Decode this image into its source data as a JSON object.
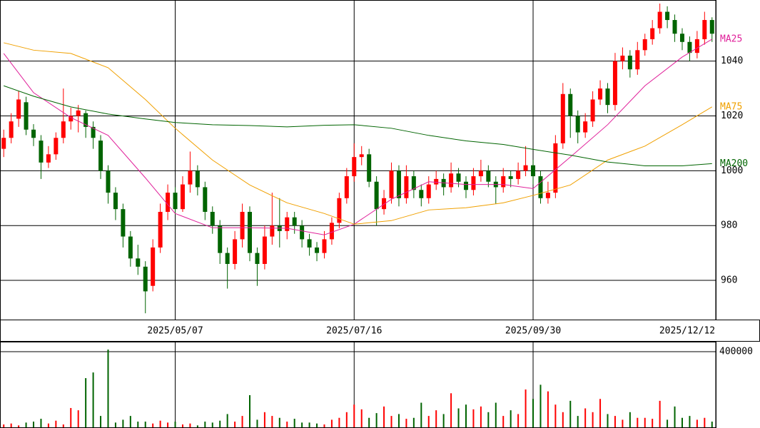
{
  "chart_data": [
    {
      "type": "candlestick",
      "x": [
        0,
        1,
        2,
        3,
        4,
        5,
        6,
        7,
        8,
        9,
        10,
        11,
        12,
        13,
        14,
        15,
        16,
        17,
        18,
        19,
        20,
        21,
        22,
        23,
        24,
        25,
        26,
        27,
        28,
        29,
        30,
        31,
        32,
        33,
        34,
        35,
        36,
        37,
        38,
        39,
        40,
        41,
        42,
        43,
        44,
        45,
        46,
        47,
        48,
        49,
        50,
        51,
        52,
        53,
        54,
        55,
        56,
        57,
        58,
        59,
        60,
        61,
        62,
        63,
        64,
        65,
        66,
        67,
        68,
        69,
        70,
        71,
        72,
        73,
        74,
        75,
        76,
        77,
        78,
        79,
        80,
        81,
        82,
        83,
        84,
        85,
        86,
        87,
        88,
        89,
        90,
        91,
        92,
        93,
        94,
        95
      ],
      "ohlc": [
        [
          1008,
          1015,
          1005,
          1012
        ],
        [
          1012,
          1021,
          1010,
          1018
        ],
        [
          1019,
          1029,
          1016,
          1026
        ],
        [
          1025,
          1027,
          1013,
          1015
        ],
        [
          1015,
          1017,
          1009,
          1012
        ],
        [
          1011,
          1013,
          997,
          1003
        ],
        [
          1003,
          1009,
          1001,
          1006
        ],
        [
          1006,
          1014,
          1004,
          1012
        ],
        [
          1012,
          1030,
          1010,
          1018
        ],
        [
          1018,
          1023,
          1015,
          1020
        ],
        [
          1020,
          1024,
          1014,
          1022
        ],
        [
          1021,
          1022,
          1012,
          1016
        ],
        [
          1016,
          1018,
          1008,
          1012
        ],
        [
          1011,
          1013,
          997,
          1000
        ],
        [
          1000,
          1002,
          988,
          992
        ],
        [
          992,
          994,
          982,
          986
        ],
        [
          986,
          988,
          972,
          976
        ],
        [
          976,
          978,
          965,
          968
        ],
        [
          968,
          973,
          962,
          965
        ],
        [
          965,
          967,
          948,
          956
        ],
        [
          958,
          975,
          956,
          972
        ],
        [
          972,
          988,
          970,
          985
        ],
        [
          985,
          995,
          982,
          992
        ],
        [
          992,
          994,
          984,
          986
        ],
        [
          986,
          998,
          985,
          995
        ],
        [
          995,
          1007,
          992,
          1000
        ],
        [
          1000,
          1002,
          991,
          994
        ],
        [
          994,
          996,
          982,
          985
        ],
        [
          985,
          987,
          977,
          980
        ],
        [
          980,
          982,
          966,
          970
        ],
        [
          970,
          972,
          957,
          966
        ],
        [
          966,
          978,
          964,
          975
        ],
        [
          975,
          988,
          972,
          985
        ],
        [
          985,
          987,
          967,
          970
        ],
        [
          970,
          972,
          958,
          966
        ],
        [
          966,
          980,
          964,
          976
        ],
        [
          976,
          992,
          973,
          980
        ],
        [
          980,
          990,
          972,
          978
        ],
        [
          978,
          985,
          975,
          983
        ],
        [
          983,
          985,
          977,
          980
        ],
        [
          980,
          982,
          972,
          975
        ],
        [
          975,
          977,
          969,
          972
        ],
        [
          972,
          974,
          967,
          970
        ],
        [
          970,
          978,
          968,
          975
        ],
        [
          975,
          983,
          973,
          981
        ],
        [
          981,
          992,
          979,
          990
        ],
        [
          990,
          1001,
          988,
          998
        ],
        [
          998,
          1010,
          996,
          1005
        ],
        [
          1005,
          1009,
          1002,
          1006
        ],
        [
          1006,
          1008,
          994,
          996
        ],
        [
          996,
          998,
          980,
          986
        ],
        [
          986,
          993,
          984,
          990
        ],
        [
          990,
          1003,
          988,
          1000
        ],
        [
          1000,
          1002,
          987,
          990
        ],
        [
          990,
          1002,
          988,
          998
        ],
        [
          998,
          1000,
          990,
          993
        ],
        [
          993,
          995,
          987,
          990
        ],
        [
          990,
          998,
          988,
          995
        ],
        [
          995,
          1000,
          993,
          997
        ],
        [
          997,
          999,
          991,
          994
        ],
        [
          994,
          1003,
          992,
          999
        ],
        [
          999,
          1001,
          994,
          996
        ],
        [
          996,
          998,
          990,
          993
        ],
        [
          993,
          1001,
          991,
          998
        ],
        [
          998,
          1004,
          996,
          1000
        ],
        [
          1000,
          1002,
          994,
          996
        ],
        [
          996,
          998,
          988,
          994
        ],
        [
          994,
          1001,
          992,
          998
        ],
        [
          998,
          1000,
          994,
          997
        ],
        [
          997,
          1003,
          995,
          1000
        ],
        [
          1000,
          1009,
          998,
          1002
        ],
        [
          1002,
          1004,
          995,
          998
        ],
        [
          998,
          1000,
          988,
          990
        ],
        [
          990,
          996,
          988,
          992
        ],
        [
          992,
          1013,
          990,
          1010
        ],
        [
          1010,
          1032,
          1008,
          1028
        ],
        [
          1028,
          1030,
          1012,
          1020
        ],
        [
          1020,
          1022,
          1010,
          1014
        ],
        [
          1014,
          1021,
          1012,
          1018
        ],
        [
          1018,
          1029,
          1016,
          1026
        ],
        [
          1026,
          1033,
          1024,
          1030
        ],
        [
          1030,
          1032,
          1021,
          1024
        ],
        [
          1024,
          1043,
          1022,
          1040
        ],
        [
          1040,
          1045,
          1037,
          1042
        ],
        [
          1042,
          1044,
          1034,
          1037
        ],
        [
          1037,
          1047,
          1035,
          1044
        ],
        [
          1044,
          1050,
          1042,
          1048
        ],
        [
          1048,
          1055,
          1046,
          1052
        ],
        [
          1052,
          1061,
          1050,
          1058
        ],
        [
          1058,
          1060,
          1052,
          1055
        ],
        [
          1055,
          1057,
          1047,
          1050
        ],
        [
          1050,
          1052,
          1044,
          1047
        ],
        [
          1047,
          1049,
          1040,
          1043
        ],
        [
          1043,
          1051,
          1041,
          1048
        ],
        [
          1048,
          1058,
          1046,
          1055
        ],
        [
          1055,
          1056,
          1047,
          1050
        ]
      ],
      "up_color": "#ff0000",
      "down_color": "#006400",
      "series": [
        {
          "name": "MA25",
          "color": "#e0209a",
          "x": [
            0,
            4,
            9,
            14,
            19,
            23,
            28,
            33,
            38,
            43,
            47,
            52,
            57,
            62,
            67,
            71,
            76,
            81,
            86,
            91,
            95
          ],
          "values": [
            1042.8,
            1028.5,
            1019.4,
            1012.9,
            997.4,
            984.4,
            979.2,
            979.2,
            979,
            976.6,
            980.5,
            989.6,
            996,
            995,
            995,
            993.5,
            1005,
            1016.8,
            1031,
            1041.5,
            1048
          ]
        },
        {
          "name": "MA75",
          "color": "#f0a000",
          "x": [
            0,
            4,
            9,
            14,
            19,
            23,
            28,
            33,
            38,
            43,
            47,
            52,
            57,
            62,
            67,
            71,
            76,
            81,
            86,
            91,
            95
          ],
          "values": [
            1046.7,
            1044,
            1042.8,
            1037.6,
            1026,
            1015.5,
            1003.9,
            994.8,
            988.3,
            984.4,
            980.5,
            981.8,
            985.7,
            986.5,
            988.3,
            991,
            994.8,
            1003.9,
            1009,
            1016.8,
            1023.3
          ]
        },
        {
          "name": "MA200",
          "color": "#006400",
          "x": [
            0,
            4,
            9,
            14,
            19,
            23,
            28,
            33,
            38,
            43,
            47,
            52,
            57,
            62,
            67,
            71,
            76,
            81,
            86,
            91,
            95
          ],
          "values": [
            1031,
            1027.2,
            1023.3,
            1020.7,
            1018.9,
            1017.6,
            1016.8,
            1016.5,
            1016,
            1016.6,
            1016.8,
            1015.5,
            1012.9,
            1010.9,
            1009.6,
            1007.8,
            1005.7,
            1003.2,
            1001.8,
            1001.8,
            1002.6
          ]
        }
      ],
      "xlim": [
        -0.5,
        95.5
      ],
      "xticks": [
        {
          "value": 23,
          "label": "2025/05/07"
        },
        {
          "value": 47,
          "label": "2025/07/16"
        },
        {
          "value": 71,
          "label": "2025/09/30"
        },
        {
          "value": 95.5,
          "label": "2025/12/12"
        }
      ],
      "ylim": [
        945.7,
        1062.3
      ],
      "yticks": [
        960,
        980,
        1000,
        1020,
        1040
      ]
    },
    {
      "type": "bar",
      "x": [
        0,
        1,
        2,
        3,
        4,
        5,
        6,
        7,
        8,
        9,
        10,
        11,
        12,
        13,
        14,
        15,
        16,
        17,
        18,
        19,
        20,
        21,
        22,
        23,
        24,
        25,
        26,
        27,
        28,
        29,
        30,
        31,
        32,
        33,
        34,
        35,
        36,
        37,
        38,
        39,
        40,
        41,
        42,
        43,
        44,
        45,
        46,
        47,
        48,
        49,
        50,
        51,
        52,
        53,
        54,
        55,
        56,
        57,
        58,
        59,
        60,
        61,
        62,
        63,
        64,
        65,
        66,
        67,
        68,
        69,
        70,
        71,
        72,
        73,
        74,
        75,
        76,
        77,
        78,
        79,
        80,
        81,
        82,
        83,
        84,
        85,
        86,
        87,
        88,
        89,
        90,
        91,
        92,
        93,
        94,
        95
      ],
      "values": [
        15000,
        20000,
        10000,
        25000,
        30000,
        45000,
        20000,
        35000,
        15000,
        102000,
        90000,
        260000,
        290000,
        60000,
        411000,
        25000,
        40000,
        60000,
        30000,
        30000,
        20000,
        35000,
        25000,
        30000,
        15000,
        20000,
        10000,
        30000,
        25000,
        35000,
        70000,
        30000,
        60000,
        170000,
        40000,
        80000,
        60000,
        50000,
        30000,
        45000,
        25000,
        25000,
        20000,
        15000,
        40000,
        50000,
        80000,
        120000,
        95000,
        50000,
        75000,
        110000,
        60000,
        70000,
        45000,
        50000,
        130000,
        60000,
        90000,
        70000,
        180000,
        100000,
        120000,
        95000,
        110000,
        80000,
        130000,
        60000,
        90000,
        70000,
        200000,
        150000,
        225000,
        190000,
        120000,
        80000,
        140000,
        60000,
        100000,
        80000,
        150000,
        70000,
        60000,
        40000,
        80000,
        50000,
        50000,
        45000,
        140000,
        40000,
        110000,
        50000,
        60000,
        40000,
        50000,
        30000
      ],
      "xlim": [
        -0.5,
        95.5
      ],
      "ylim": [
        0,
        449000
      ],
      "yticks": [
        400000
      ]
    }
  ]
}
